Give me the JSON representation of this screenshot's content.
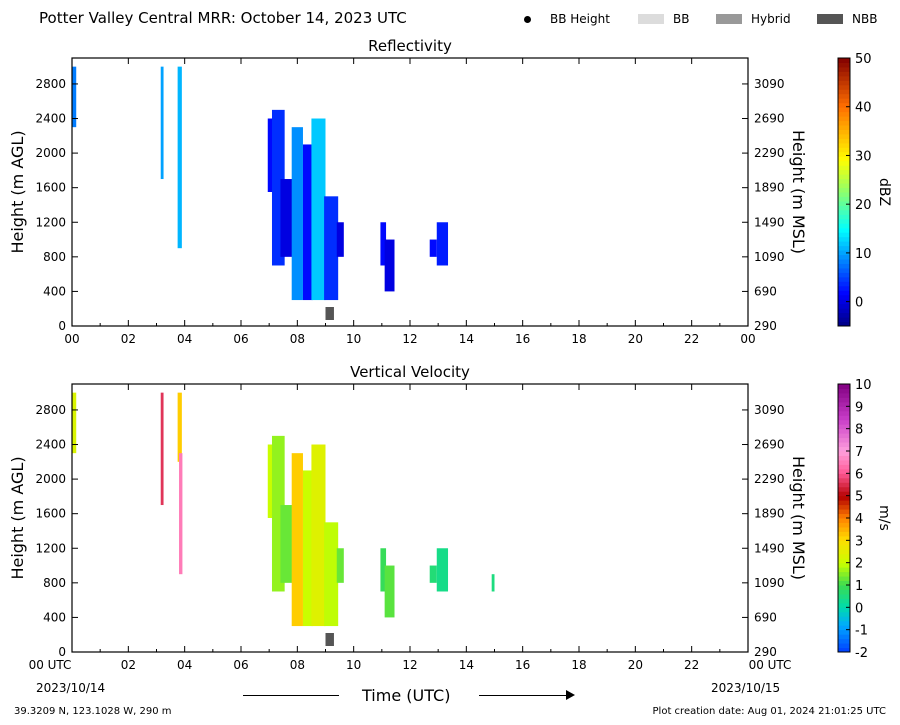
{
  "figure": {
    "title": "Potter Valley Central MRR:  October 14, 2023 UTC",
    "footer_left": "39.3209 N, 123.1028 W, 290 m",
    "footer_right": "Plot creation date: Aug 01, 2024 21:01:25 UTC",
    "date_start": "2023/10/14",
    "date_end": "2023/10/15",
    "time_axis_label": "Time (UTC)"
  },
  "legend": [
    {
      "label": "BB Height",
      "kind": "dot",
      "color": "#000000"
    },
    {
      "label": "BB",
      "kind": "box",
      "color": "#dcdcdc"
    },
    {
      "label": "Hybrid",
      "kind": "box",
      "color": "#999999"
    },
    {
      "label": "NBB",
      "kind": "box",
      "color": "#555555"
    }
  ],
  "chart_data": [
    {
      "type": "heatmap",
      "title": "Reflectivity",
      "ylabel": "Height (m AGL)",
      "ylabel_right": "Height (m MSL)",
      "x_range_hours": [
        0,
        24
      ],
      "x_ticks": [
        "00",
        "02",
        "04",
        "06",
        "08",
        "10",
        "12",
        "14",
        "16",
        "18",
        "20",
        "22",
        "00"
      ],
      "ylim": [
        0,
        3100
      ],
      "y_ticks": [
        0,
        400,
        800,
        1200,
        1600,
        2000,
        2400,
        2800
      ],
      "y_ticks_right": [
        290,
        690,
        1090,
        1490,
        1890,
        2290,
        2690,
        3090
      ],
      "colorbar": {
        "label": "dBZ",
        "range": [
          -5,
          50
        ],
        "ticks": [
          0,
          10,
          20,
          30,
          40,
          50
        ]
      },
      "echoes": [
        {
          "t_start": 0.0,
          "t_end": 0.15,
          "h_bottom": 2300,
          "h_top": 3000,
          "value": 8
        },
        {
          "t_start": 3.15,
          "t_end": 3.25,
          "h_bottom": 1700,
          "h_top": 3000,
          "value": 10
        },
        {
          "t_start": 3.75,
          "t_end": 3.9,
          "h_bottom": 900,
          "h_top": 3000,
          "value": 11
        },
        {
          "t_start": 6.95,
          "t_end": 7.2,
          "h_bottom": 1550,
          "h_top": 2400,
          "value": 2
        },
        {
          "t_start": 7.1,
          "t_end": 7.55,
          "h_bottom": 700,
          "h_top": 2500,
          "value": 4
        },
        {
          "t_start": 7.4,
          "t_end": 7.9,
          "h_bottom": 800,
          "h_top": 1700,
          "value": 0
        },
        {
          "t_start": 7.8,
          "t_end": 8.2,
          "h_bottom": 300,
          "h_top": 2300,
          "value": 9
        },
        {
          "t_start": 8.2,
          "t_end": 8.55,
          "h_bottom": 300,
          "h_top": 2100,
          "value": 2
        },
        {
          "t_start": 8.5,
          "t_end": 9.0,
          "h_bottom": 300,
          "h_top": 2400,
          "value": 12
        },
        {
          "t_start": 8.95,
          "t_end": 9.45,
          "h_bottom": 300,
          "h_top": 1500,
          "value": 4
        },
        {
          "t_start": 9.4,
          "t_end": 9.65,
          "h_bottom": 800,
          "h_top": 1200,
          "value": 0
        },
        {
          "t_start": 10.95,
          "t_end": 11.15,
          "h_bottom": 700,
          "h_top": 1200,
          "value": 2
        },
        {
          "t_start": 11.1,
          "t_end": 11.45,
          "h_bottom": 400,
          "h_top": 1000,
          "value": 0
        },
        {
          "t_start": 12.7,
          "t_end": 12.95,
          "h_bottom": 800,
          "h_top": 1000,
          "value": 2
        },
        {
          "t_start": 12.95,
          "t_end": 13.35,
          "h_bottom": 700,
          "h_top": 1200,
          "value": 3
        }
      ],
      "bright_band": [
        {
          "t_start": 9.0,
          "t_end": 9.3,
          "category": "NBB"
        }
      ]
    },
    {
      "type": "heatmap",
      "title": "Vertical Velocity",
      "ylabel": "Height (m AGL)",
      "ylabel_right": "Height (m MSL)",
      "x_range_hours": [
        0,
        24
      ],
      "x_ticks": [
        "00 UTC",
        "02",
        "04",
        "06",
        "08",
        "10",
        "12",
        "14",
        "16",
        "18",
        "20",
        "22",
        "00 UTC"
      ],
      "ylim": [
        0,
        3100
      ],
      "y_ticks": [
        0,
        400,
        800,
        1200,
        1600,
        2000,
        2400,
        2800
      ],
      "y_ticks_right": [
        290,
        690,
        1090,
        1490,
        1890,
        2290,
        2690,
        3090
      ],
      "colorbar": {
        "label": "m/s",
        "range": [
          -2,
          10
        ],
        "ticks": [
          -2,
          -1,
          0,
          1,
          2,
          3,
          4,
          5,
          6,
          7,
          8,
          9,
          10
        ]
      },
      "echoes": [
        {
          "t_start": 0.0,
          "t_end": 0.15,
          "h_bottom": 2300,
          "h_top": 3000,
          "value": 2.3
        },
        {
          "t_start": 3.15,
          "t_end": 3.25,
          "h_bottom": 1700,
          "h_top": 3000,
          "value": 5.6
        },
        {
          "t_start": 3.75,
          "t_end": 3.9,
          "h_bottom": 2200,
          "h_top": 3000,
          "value": 3.2
        },
        {
          "t_start": 3.8,
          "t_end": 3.92,
          "h_bottom": 900,
          "h_top": 2300,
          "value": 6.5
        },
        {
          "t_start": 6.95,
          "t_end": 7.2,
          "h_bottom": 1550,
          "h_top": 2400,
          "value": 2.0
        },
        {
          "t_start": 7.1,
          "t_end": 7.55,
          "h_bottom": 700,
          "h_top": 2500,
          "value": 1.6
        },
        {
          "t_start": 7.4,
          "t_end": 7.9,
          "h_bottom": 800,
          "h_top": 1700,
          "value": 1.3
        },
        {
          "t_start": 7.8,
          "t_end": 8.2,
          "h_bottom": 300,
          "h_top": 2300,
          "value": 3.2
        },
        {
          "t_start": 8.2,
          "t_end": 8.55,
          "h_bottom": 300,
          "h_top": 2100,
          "value": 2.0
        },
        {
          "t_start": 8.5,
          "t_end": 9.0,
          "h_bottom": 300,
          "h_top": 2400,
          "value": 2.4
        },
        {
          "t_start": 8.95,
          "t_end": 9.45,
          "h_bottom": 300,
          "h_top": 1500,
          "value": 1.9
        },
        {
          "t_start": 9.4,
          "t_end": 9.65,
          "h_bottom": 800,
          "h_top": 1200,
          "value": 1.3
        },
        {
          "t_start": 10.95,
          "t_end": 11.15,
          "h_bottom": 700,
          "h_top": 1200,
          "value": 0.9
        },
        {
          "t_start": 11.1,
          "t_end": 11.45,
          "h_bottom": 400,
          "h_top": 1000,
          "value": 1.2
        },
        {
          "t_start": 12.7,
          "t_end": 12.95,
          "h_bottom": 800,
          "h_top": 1000,
          "value": 0.6
        },
        {
          "t_start": 12.95,
          "t_end": 13.35,
          "h_bottom": 700,
          "h_top": 1200,
          "value": 0.4
        },
        {
          "t_start": 14.9,
          "t_end": 15.0,
          "h_bottom": 700,
          "h_top": 900,
          "value": 0.5
        }
      ],
      "bright_band": [
        {
          "t_start": 9.0,
          "t_end": 9.3,
          "category": "NBB"
        }
      ]
    }
  ]
}
